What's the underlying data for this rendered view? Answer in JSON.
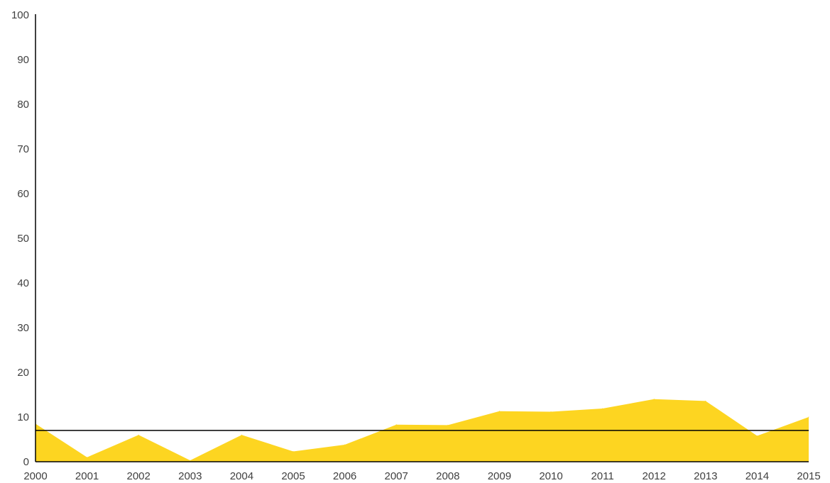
{
  "chart_data": {
    "type": "area",
    "title": "",
    "xlabel": "",
    "ylabel": "",
    "x": [
      "2000",
      "2001",
      "2002",
      "2003",
      "2004",
      "2005",
      "2006",
      "2007",
      "2008",
      "2009",
      "2010",
      "2011",
      "2012",
      "2013",
      "2014",
      "2015"
    ],
    "series": [
      {
        "values": [
          8.5,
          1.0,
          6.0,
          0.3,
          6.0,
          2.3,
          3.8,
          8.3,
          8.2,
          11.3,
          11.2,
          11.9,
          14.0,
          13.6,
          5.8,
          10.0
        ],
        "color": "#FDD521"
      }
    ],
    "reference_line": {
      "value": 7.0,
      "color": "#000000"
    },
    "ylim": [
      0,
      100
    ],
    "yticks": [
      0,
      10,
      20,
      30,
      40,
      50,
      60,
      70,
      80,
      90,
      100
    ],
    "grid": false,
    "legend": "none"
  }
}
